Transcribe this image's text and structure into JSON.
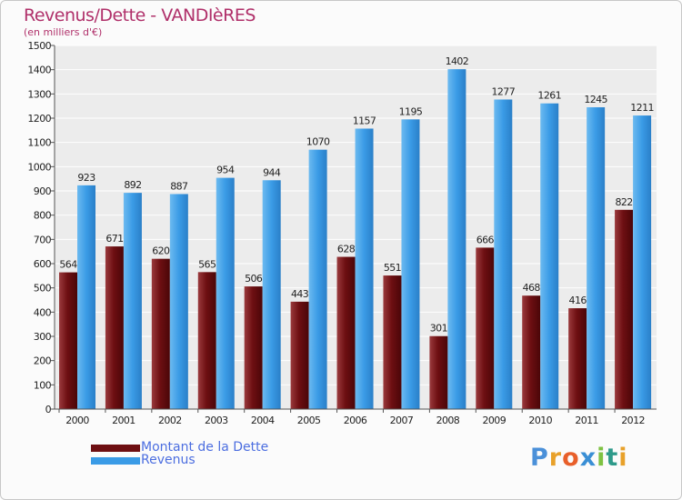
{
  "title": "Revenus/Dette - VANDIèRES",
  "subtitle": "(en milliers d'€)",
  "logo": [
    "P",
    "r",
    "o",
    "x",
    "i",
    "t",
    "i"
  ],
  "logo_colors": [
    "#4a90d9",
    "#e8a12a",
    "#e85f2a",
    "#3a8fd5",
    "#7ec242",
    "#2e9a8a",
    "#e8a12a"
  ],
  "legend": {
    "debt": {
      "label": "Montant de la Dette",
      "color": "#6e0f12"
    },
    "revenue": {
      "label": "Revenus",
      "color": "#3a9be6"
    }
  },
  "chart_data": {
    "type": "bar",
    "title": "Revenus/Dette - VANDIèRES",
    "ylabel": "(en milliers d'€)",
    "xlabel": "",
    "categories": [
      "2000",
      "2001",
      "2002",
      "2003",
      "2004",
      "2005",
      "2006",
      "2007",
      "2008",
      "2009",
      "2010",
      "2011",
      "2012"
    ],
    "series": [
      {
        "name": "Montant de la Dette",
        "color": "#6e0f12",
        "values": [
          564,
          671,
          620,
          565,
          506,
          443,
          628,
          551,
          301,
          666,
          468,
          416,
          822
        ]
      },
      {
        "name": "Revenus",
        "color": "#3a9be6",
        "values": [
          923,
          892,
          887,
          954,
          944,
          1070,
          1157,
          1195,
          1402,
          1277,
          1261,
          1245,
          1211
        ]
      }
    ],
    "ylim": [
      0,
      1500
    ],
    "yticks": [
      0,
      100,
      200,
      300,
      400,
      500,
      600,
      700,
      800,
      900,
      1000,
      1100,
      1200,
      1300,
      1400,
      1500
    ],
    "grid": true,
    "legend": "bottom-left"
  }
}
